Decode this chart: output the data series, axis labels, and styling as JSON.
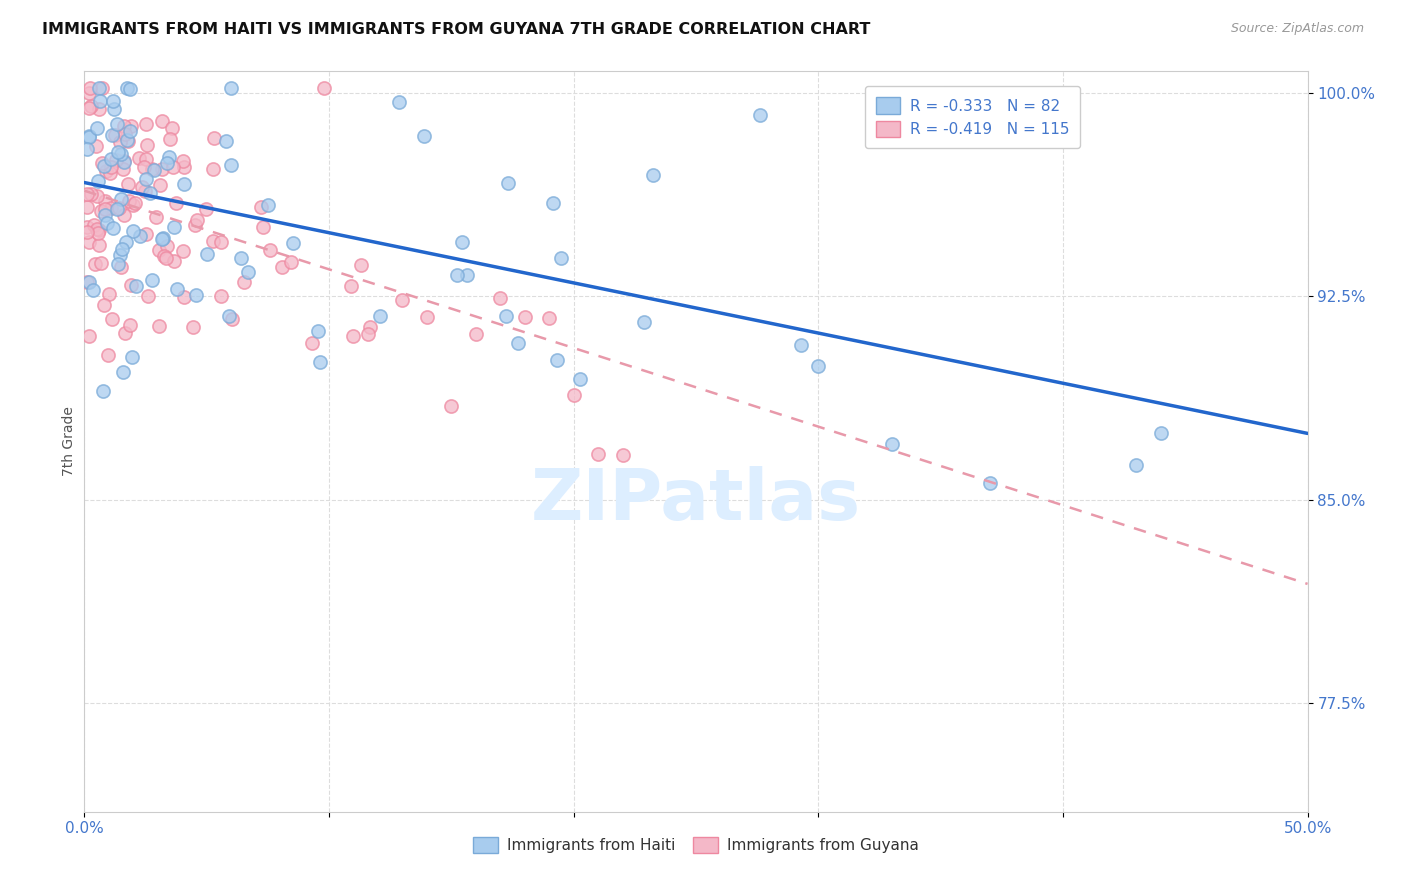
{
  "title": "IMMIGRANTS FROM HAITI VS IMMIGRANTS FROM GUYANA 7TH GRADE CORRELATION CHART",
  "source": "Source: ZipAtlas.com",
  "ylabel": "7th Grade",
  "xlim": [
    0.0,
    0.5
  ],
  "ylim": [
    0.735,
    1.008
  ],
  "xtick_positions": [
    0.0,
    0.1,
    0.2,
    0.3,
    0.4,
    0.5
  ],
  "xtick_labels": [
    "0.0%",
    "",
    "",
    "",
    "",
    "50.0%"
  ],
  "ytick_positions": [
    0.775,
    0.85,
    0.925,
    1.0
  ],
  "ytick_labels": [
    "77.5%",
    "85.0%",
    "92.5%",
    "100.0%"
  ],
  "haiti_R": -0.333,
  "haiti_N": 82,
  "guyana_R": -0.419,
  "guyana_N": 115,
  "haiti_scatter_color": "#a8ccee",
  "guyana_scatter_color": "#f4b8c8",
  "haiti_line_color": "#2266cc",
  "guyana_line_color": "#e899aa",
  "haiti_edge_color": "#7aaad8",
  "guyana_edge_color": "#ee88a0",
  "watermark_color": "#ddeeff",
  "background_color": "#ffffff",
  "grid_color": "#dddddd",
  "tick_color": "#4477cc",
  "legend_text_color": "#4477cc",
  "haiti_line_intercept": 0.967,
  "haiti_line_slope": -0.185,
  "guyana_line_intercept": 0.964,
  "guyana_line_slope": -0.29
}
